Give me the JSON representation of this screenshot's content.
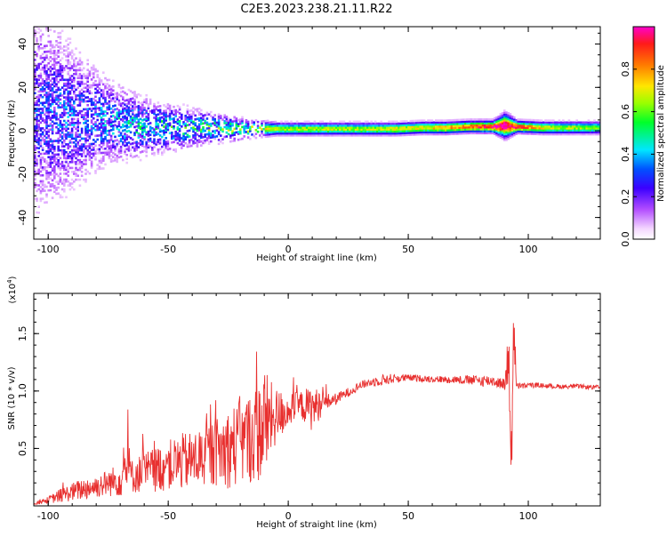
{
  "page": {
    "title": "C2E3.2023.238.21.11.R22"
  },
  "chart_data": [
    {
      "type": "heatmap",
      "xlabel": "Height of straight line (km)",
      "ylabel": "Frequency (Hz)",
      "xlim": [
        -106,
        130
      ],
      "ylim": [
        -50,
        48
      ],
      "xticks": [
        -100,
        -50,
        0,
        50,
        100
      ],
      "xtick_labels": [
        "-100",
        "-50",
        "0",
        "50",
        "100"
      ],
      "yticks": [
        -40,
        -20,
        0,
        20,
        40
      ],
      "ytick_labels": [
        "-40",
        "-20",
        "0",
        "20",
        "40"
      ],
      "colorbar": {
        "label": "Normalized spectral amplitude",
        "range": [
          0.0,
          1.0
        ],
        "ticks": [
          0.0,
          0.2,
          0.4,
          0.6,
          0.8
        ],
        "tick_labels": [
          "0.0",
          "0.2",
          "0.4",
          "0.6",
          "0.8"
        ]
      },
      "ridge": {
        "x": [
          -105,
          -95,
          -85,
          -75,
          -65,
          -55,
          -45,
          -35,
          -25,
          -15,
          -5,
          5,
          15,
          25,
          35,
          45,
          55,
          65,
          75,
          85,
          90,
          95,
          105,
          115,
          130
        ],
        "center_hz": [
          8,
          7,
          5,
          4,
          2,
          1,
          1,
          1,
          0.5,
          0.5,
          0.5,
          0.5,
          0.5,
          0.5,
          0.5,
          0.5,
          1,
          1,
          1.5,
          1.5,
          2,
          1.5,
          1,
          1,
          1
        ],
        "spread_hz": [
          25,
          20,
          15,
          10,
          8,
          6,
          5,
          4,
          3,
          2,
          1.5,
          1.5,
          1.5,
          1.5,
          1.5,
          1.5,
          1.5,
          1.5,
          1.5,
          1.5,
          3,
          1.5,
          1.5,
          1.5,
          1.5
        ],
        "peak_amplitude": [
          0.3,
          0.35,
          0.35,
          0.4,
          0.45,
          0.5,
          0.55,
          0.55,
          0.6,
          0.65,
          0.6,
          0.6,
          0.6,
          0.6,
          0.6,
          0.65,
          0.65,
          0.7,
          0.75,
          0.85,
          0.95,
          0.8,
          0.65,
          0.6,
          0.55
        ]
      }
    },
    {
      "type": "line",
      "xlabel": "Height of straight line (km)",
      "ylabel": "SNR (10 * v/v)",
      "y_multiplier_label": "(x10",
      "y_multiplier_exp": "4",
      "y_multiplier_close": ")",
      "xlim": [
        -106,
        130
      ],
      "ylim": [
        0,
        18500
      ],
      "xticks": [
        -100,
        -50,
        0,
        50,
        100
      ],
      "xtick_labels": [
        "-100",
        "-50",
        "0",
        "50",
        "100"
      ],
      "yticks": [
        5000,
        10000,
        15000
      ],
      "ytick_labels": [
        "0.5",
        "1.0",
        "1.5"
      ],
      "series": [
        {
          "color": "#e8302f",
          "x": [
            -106,
            -100,
            -95,
            -90,
            -85,
            -80,
            -75,
            -70,
            -67,
            -65,
            -60,
            -55,
            -50,
            -45,
            -40,
            -35,
            -30,
            -25,
            -20,
            -15,
            -12,
            -10,
            -8,
            -5,
            0,
            5,
            10,
            15,
            20,
            25,
            30,
            35,
            40,
            45,
            50,
            55,
            60,
            65,
            70,
            75,
            80,
            85,
            90,
            92,
            93,
            94,
            95,
            100,
            105,
            110,
            115,
            120,
            125,
            130
          ],
          "y": [
            200,
            500,
            900,
            1200,
            1500,
            1700,
            2000,
            2300,
            3500,
            2600,
            2900,
            3200,
            3500,
            3800,
            4000,
            4300,
            4700,
            5000,
            5500,
            6000,
            6500,
            7000,
            7500,
            7800,
            8300,
            8800,
            8500,
            9000,
            9300,
            9900,
            10500,
            10800,
            11000,
            11100,
            11150,
            11100,
            11050,
            11000,
            11000,
            10950,
            10900,
            10900,
            10600,
            12500,
            4500,
            16000,
            10400,
            10500,
            10500,
            10400,
            10400,
            10400,
            10350,
            10300
          ],
          "noise": [
            100,
            300,
            600,
            800,
            1000,
            1000,
            1200,
            1500,
            2500,
            1500,
            1800,
            2000,
            2200,
            2500,
            2500,
            2800,
            3000,
            3500,
            3800,
            4000,
            4500,
            5500,
            3500,
            2500,
            1500,
            1200,
            2000,
            800,
            500,
            400,
            350,
            400,
            500,
            400,
            300,
            300,
            300,
            300,
            350,
            400,
            500,
            500,
            500,
            3500,
            3500,
            3000,
            300,
            250,
            200,
            200,
            200,
            200,
            200,
            200
          ]
        }
      ]
    }
  ]
}
